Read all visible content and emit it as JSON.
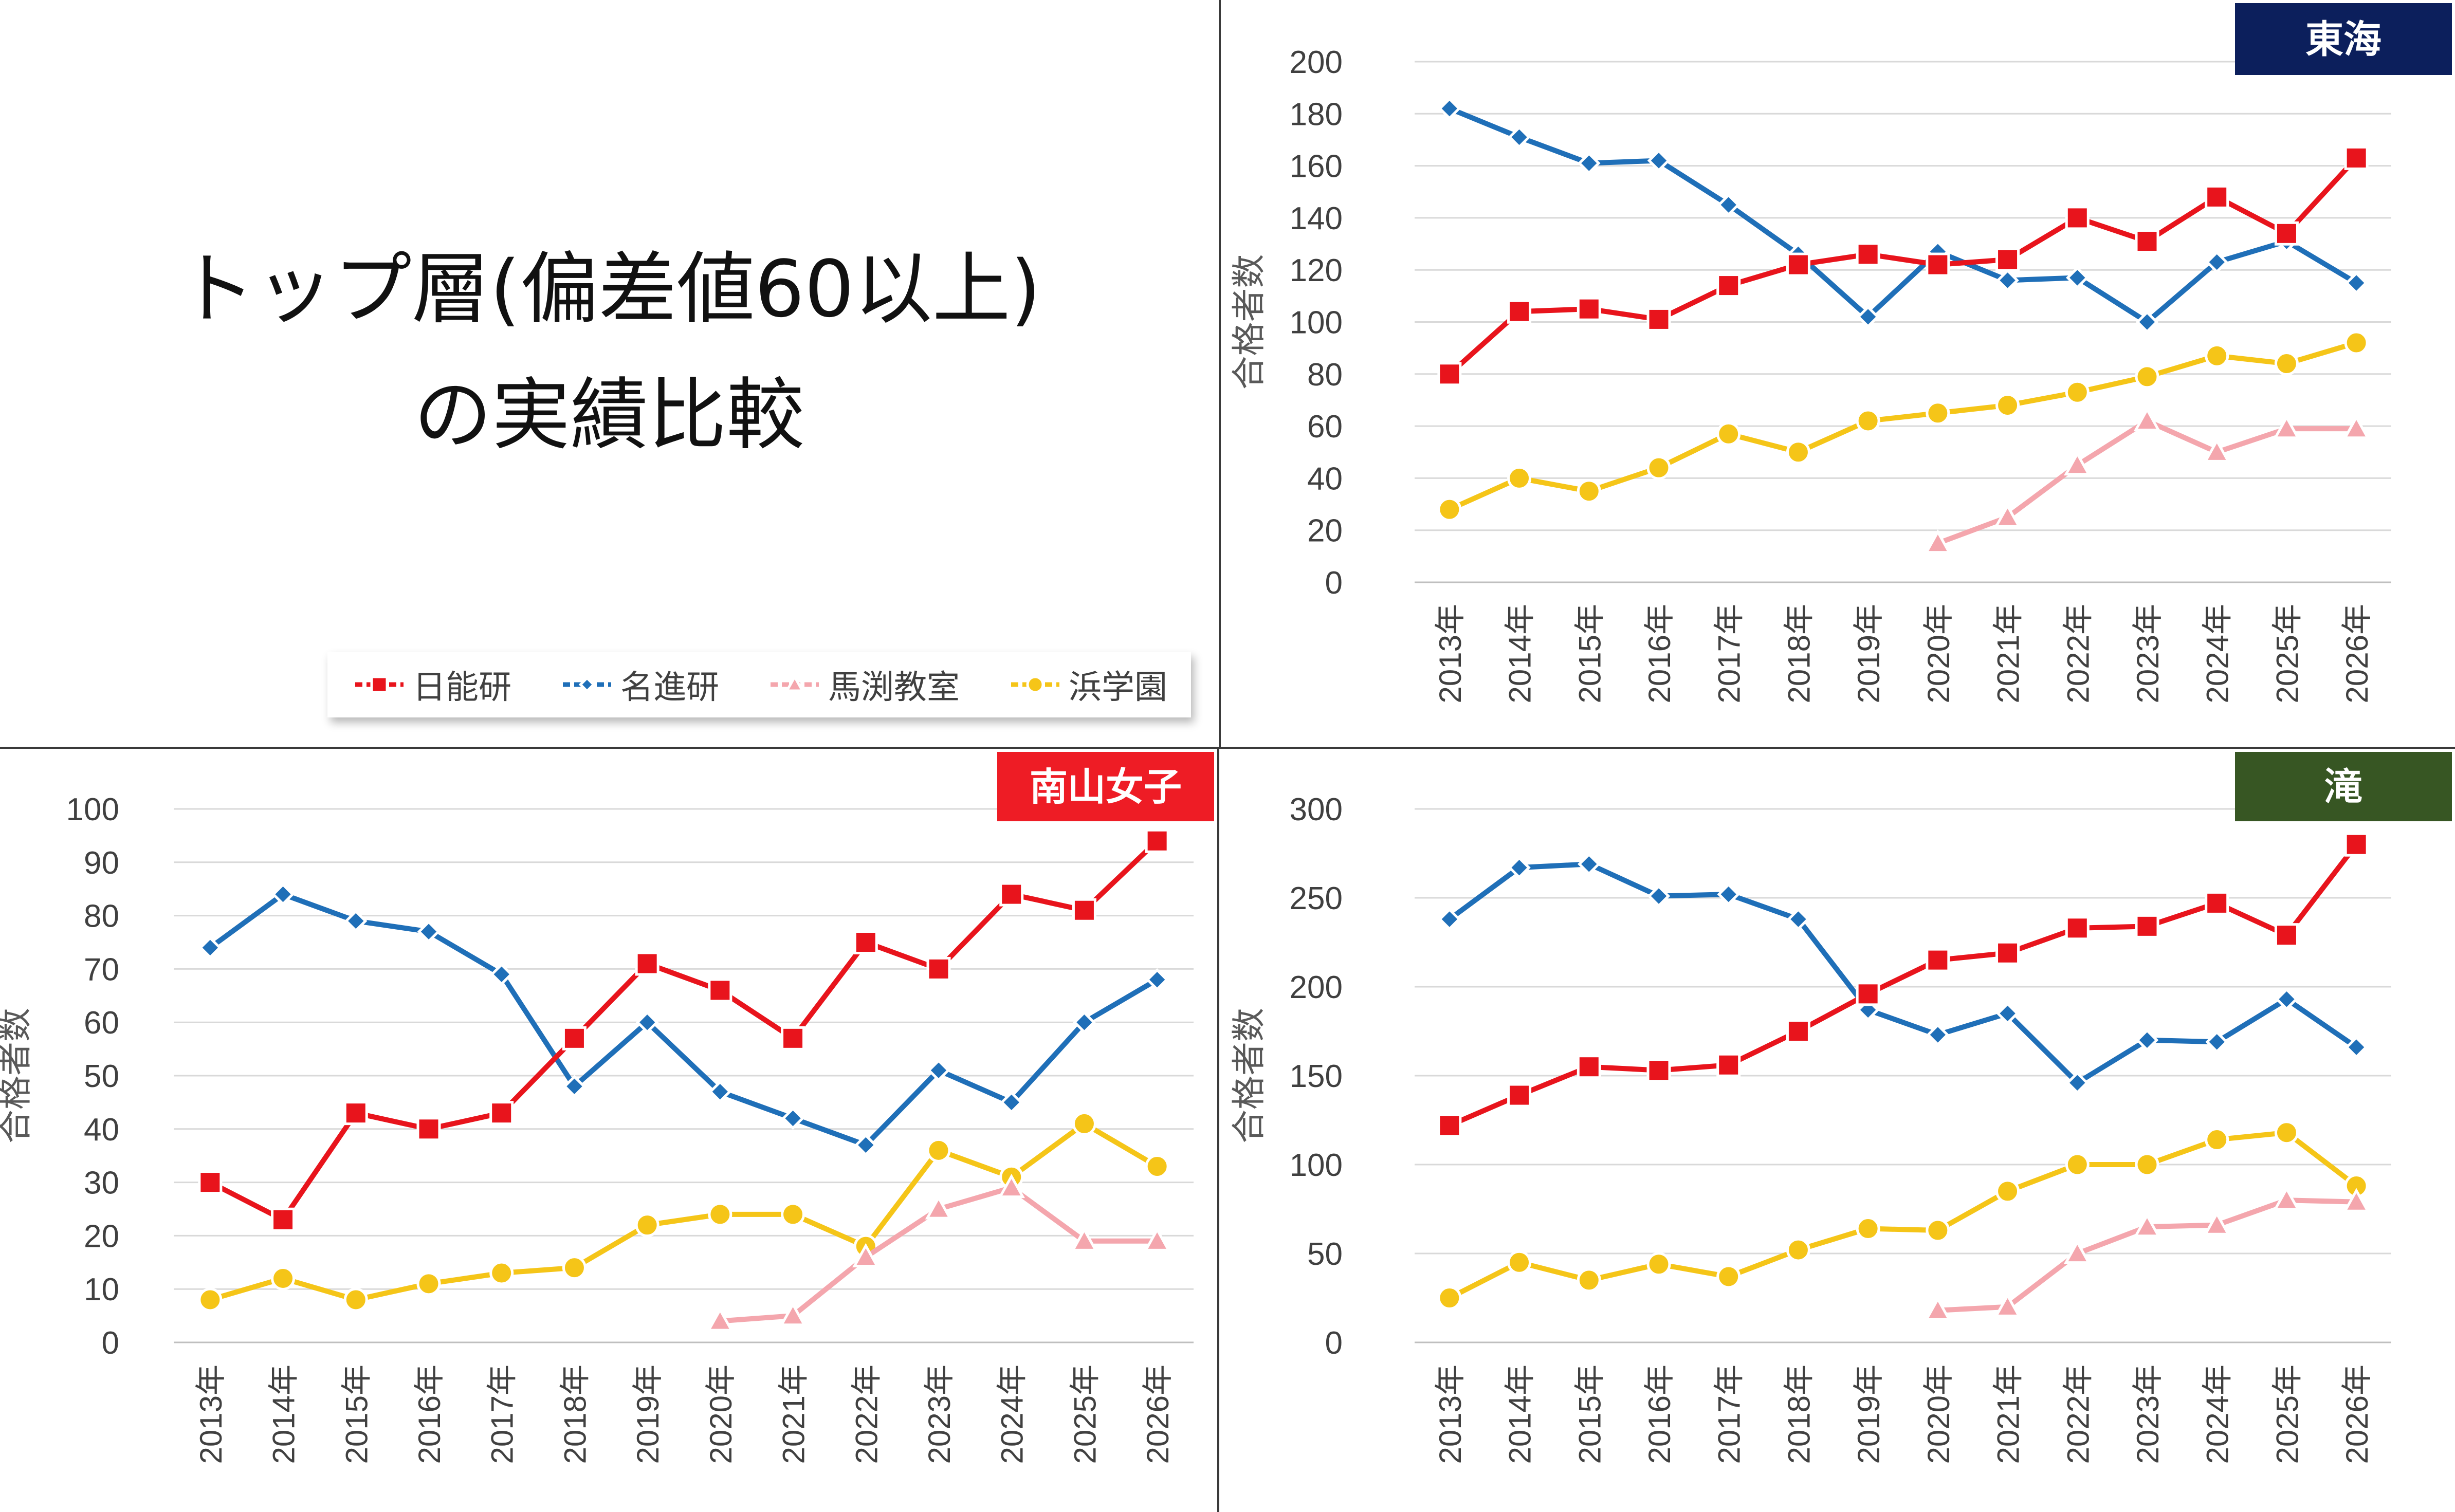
{
  "title": {
    "line1": "トップ層(偏差値60以上)",
    "line2": "の実績比較"
  },
  "legend": [
    {
      "name": "日能研",
      "color": "#e8141c",
      "marker": "square"
    },
    {
      "name": "名進研",
      "color": "#1f6fb8",
      "marker": "diamond"
    },
    {
      "name": "馬渕教室",
      "color": "#f4a6ad",
      "marker": "triangle"
    },
    {
      "name": "浜学園",
      "color": "#f5c518",
      "marker": "circle"
    }
  ],
  "chart_data": [
    {
      "type": "line",
      "badge": "東海",
      "badge_color": "#0c1f5c",
      "ylabel": "合格者数",
      "ylim": [
        0,
        200
      ],
      "ystep": 20,
      "categories": [
        "2013年",
        "2014年",
        "2015年",
        "2016年",
        "2017年",
        "2018年",
        "2019年",
        "2020年",
        "2021年",
        "2022年",
        "2023年",
        "2024年",
        "2025年",
        "2026年"
      ],
      "series": [
        {
          "name": "日能研",
          "values": [
            80,
            104,
            105,
            101,
            114,
            122,
            126,
            122,
            124,
            140,
            131,
            148,
            134,
            163
          ]
        },
        {
          "name": "名進研",
          "values": [
            182,
            171,
            161,
            162,
            145,
            126,
            102,
            127,
            116,
            117,
            100,
            123,
            131,
            115
          ]
        },
        {
          "name": "馬渕教室",
          "values": [
            null,
            null,
            null,
            null,
            null,
            null,
            null,
            15,
            25,
            45,
            62,
            50,
            59,
            59
          ]
        },
        {
          "name": "浜学園",
          "values": [
            28,
            40,
            35,
            44,
            57,
            50,
            62,
            65,
            68,
            73,
            79,
            87,
            84,
            92
          ]
        }
      ]
    },
    {
      "type": "line",
      "badge": "南山女子",
      "badge_color": "#ee1c25",
      "ylabel": "合格者数",
      "ylim": [
        0,
        100
      ],
      "ystep": 10,
      "categories": [
        "2013年",
        "2014年",
        "2015年",
        "2016年",
        "2017年",
        "2018年",
        "2019年",
        "2020年",
        "2021年",
        "2022年",
        "2023年",
        "2024年",
        "2025年",
        "2026年"
      ],
      "series": [
        {
          "name": "日能研",
          "values": [
            30,
            23,
            43,
            40,
            43,
            57,
            71,
            66,
            57,
            75,
            70,
            84,
            81,
            94
          ]
        },
        {
          "name": "名進研",
          "values": [
            74,
            84,
            79,
            77,
            69,
            48,
            60,
            47,
            42,
            37,
            51,
            45,
            60,
            68
          ]
        },
        {
          "name": "馬渕教室",
          "values": [
            null,
            null,
            null,
            null,
            null,
            null,
            null,
            4,
            5,
            16,
            25,
            29,
            19,
            19
          ]
        },
        {
          "name": "浜学園",
          "values": [
            8,
            12,
            8,
            11,
            13,
            14,
            22,
            24,
            24,
            18,
            36,
            31,
            41,
            33
          ]
        }
      ]
    },
    {
      "type": "line",
      "badge": "滝",
      "badge_color": "#375623",
      "ylabel": "合格者数",
      "ylim": [
        0,
        300
      ],
      "ystep": 50,
      "categories": [
        "2013年",
        "2014年",
        "2015年",
        "2016年",
        "2017年",
        "2018年",
        "2019年",
        "2020年",
        "2021年",
        "2022年",
        "2023年",
        "2024年",
        "2025年",
        "2026年"
      ],
      "series": [
        {
          "name": "日能研",
          "values": [
            122,
            139,
            155,
            153,
            156,
            175,
            196,
            215,
            219,
            233,
            234,
            247,
            229,
            280
          ]
        },
        {
          "name": "名進研",
          "values": [
            238,
            267,
            269,
            251,
            252,
            238,
            187,
            173,
            185,
            146,
            170,
            169,
            193,
            166
          ]
        },
        {
          "name": "馬渕教室",
          "values": [
            null,
            null,
            null,
            null,
            null,
            null,
            null,
            18,
            20,
            50,
            65,
            66,
            80,
            79
          ]
        },
        {
          "name": "浜学園",
          "values": [
            25,
            45,
            35,
            44,
            37,
            52,
            64,
            63,
            85,
            100,
            100,
            114,
            118,
            88
          ]
        }
      ]
    }
  ]
}
